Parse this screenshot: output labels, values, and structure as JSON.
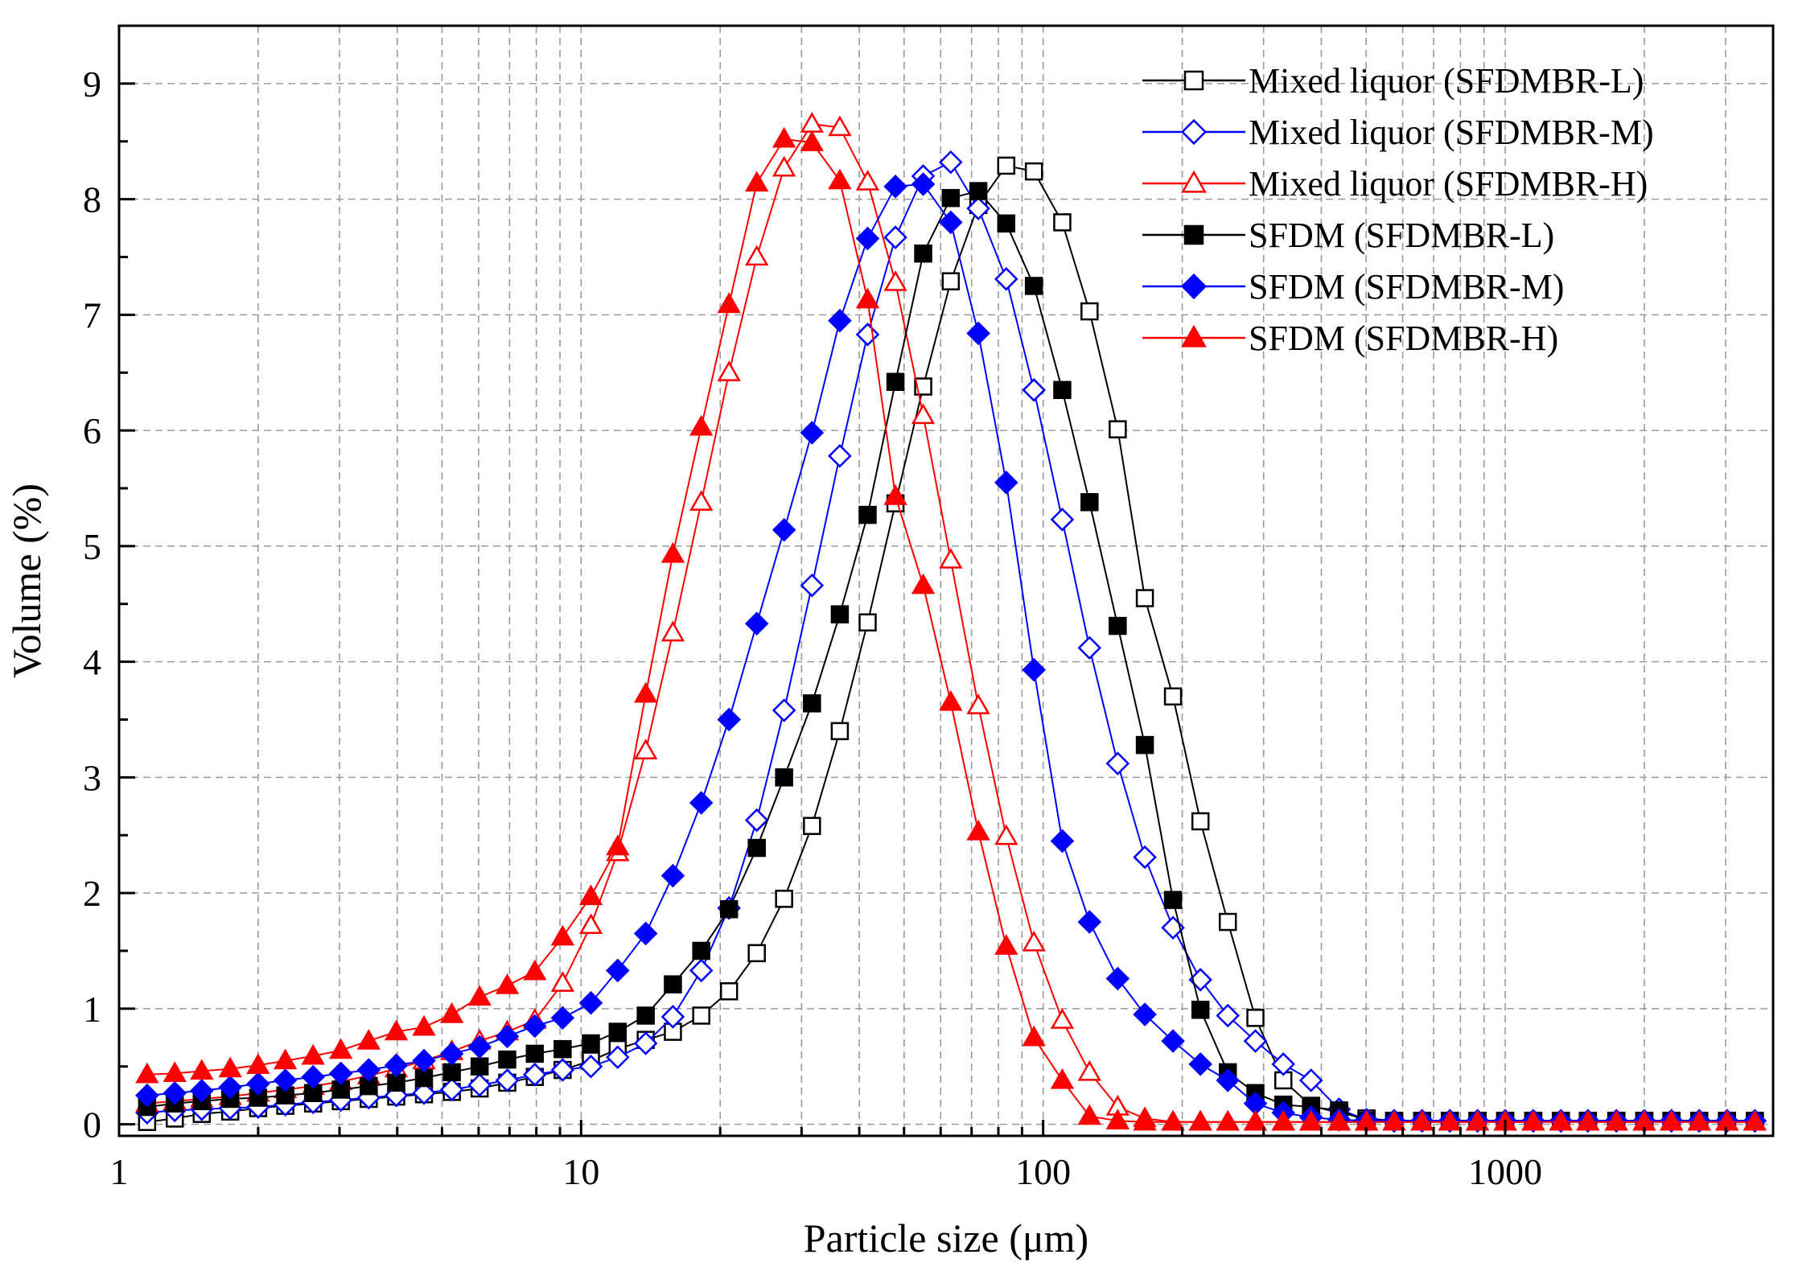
{
  "chart_data": {
    "type": "line",
    "xscale": "log",
    "xlim": [
      1,
      3800
    ],
    "ylim": [
      -0.1,
      9.5
    ],
    "xlabel": "Particle size (μm)",
    "ylabel": "Volume (%)",
    "grid": true,
    "legend_position": "top-right",
    "x_ticks": [
      1,
      10,
      100,
      1000
    ],
    "x_tick_labels": [
      "1",
      "10",
      "100",
      "1000"
    ],
    "y_ticks": [
      0,
      1,
      2,
      3,
      4,
      5,
      6,
      7,
      8,
      9
    ],
    "y_tick_labels": [
      "0",
      "1",
      "2",
      "3",
      "4",
      "5",
      "6",
      "7",
      "8",
      "9"
    ],
    "x": [
      1.15,
      1.32,
      1.51,
      1.74,
      2.0,
      2.29,
      2.63,
      3.02,
      3.47,
      3.98,
      4.57,
      5.25,
      6.03,
      6.92,
      7.94,
      9.12,
      10.5,
      12.0,
      13.8,
      15.8,
      18.2,
      20.9,
      24.0,
      27.5,
      31.6,
      36.3,
      41.7,
      47.9,
      55.0,
      63.1,
      72.4,
      83.2,
      95.5,
      110,
      126,
      145,
      166,
      191,
      219,
      251,
      288,
      331,
      380,
      437,
      501,
      575,
      661,
      759,
      871,
      1000,
      1150,
      1320,
      1510,
      1740,
      2000,
      2290,
      2630,
      3020,
      3470
    ],
    "series": [
      {
        "name": "Mixed liquor (SFDMBR-L)",
        "color": "#000000",
        "marker": "square",
        "filled": false,
        "values": [
          0.02,
          0.05,
          0.09,
          0.11,
          0.14,
          0.16,
          0.18,
          0.2,
          0.22,
          0.24,
          0.26,
          0.28,
          0.31,
          0.36,
          0.41,
          0.47,
          0.55,
          0.65,
          0.73,
          0.8,
          0.94,
          1.15,
          1.48,
          1.95,
          2.58,
          3.4,
          4.34,
          5.37,
          6.38,
          7.29,
          7.95,
          8.29,
          8.24,
          7.8,
          7.03,
          6.01,
          4.55,
          3.7,
          2.62,
          1.75,
          0.92,
          0.38,
          0.16,
          0.1,
          0.05,
          0.03,
          0.03,
          0.03,
          0.03,
          0.03,
          0.03,
          0.03,
          0.03,
          0.03,
          0.03,
          0.03,
          0.03,
          0.03,
          0.03
        ]
      },
      {
        "name": "Mixed liquor (SFDMBR-M)",
        "color": "#0000ff",
        "marker": "diamond",
        "filled": false,
        "values": [
          0.1,
          0.12,
          0.13,
          0.14,
          0.15,
          0.17,
          0.19,
          0.21,
          0.23,
          0.25,
          0.27,
          0.3,
          0.34,
          0.38,
          0.43,
          0.47,
          0.5,
          0.58,
          0.7,
          0.93,
          1.33,
          1.87,
          2.63,
          3.58,
          4.66,
          5.78,
          6.83,
          7.67,
          8.2,
          8.32,
          7.92,
          7.31,
          6.35,
          5.23,
          4.12,
          3.12,
          2.31,
          1.7,
          1.25,
          0.94,
          0.72,
          0.52,
          0.38,
          0.13,
          0.04,
          0.03,
          0.03,
          0.03,
          0.03,
          0.03,
          0.03,
          0.03,
          0.03,
          0.03,
          0.03,
          0.03,
          0.03,
          0.03,
          0.03
        ]
      },
      {
        "name": "Mixed liquor (SFDMBR-H)",
        "color": "#ff0000",
        "marker": "triangle",
        "filled": false,
        "values": [
          0.18,
          0.2,
          0.22,
          0.24,
          0.27,
          0.3,
          0.33,
          0.37,
          0.42,
          0.48,
          0.55,
          0.63,
          0.72,
          0.8,
          0.9,
          1.22,
          1.72,
          2.35,
          3.23,
          4.25,
          5.38,
          6.5,
          7.5,
          8.27,
          8.65,
          8.62,
          8.15,
          7.28,
          6.13,
          4.88,
          3.62,
          2.49,
          1.57,
          0.9,
          0.45,
          0.15,
          0.05,
          0.02,
          0.02,
          0.02,
          0.02,
          0.02,
          0.02,
          0.02,
          0.02,
          0.02,
          0.02,
          0.02,
          0.02,
          0.02,
          0.02,
          0.02,
          0.02,
          0.02,
          0.02,
          0.02,
          0.02,
          0.02,
          0.02
        ]
      },
      {
        "name": "SFDM (SFDMBR-L)",
        "color": "#000000",
        "marker": "square",
        "filled": true,
        "values": [
          0.15,
          0.18,
          0.2,
          0.22,
          0.23,
          0.25,
          0.27,
          0.3,
          0.33,
          0.36,
          0.4,
          0.45,
          0.5,
          0.56,
          0.61,
          0.65,
          0.7,
          0.8,
          0.94,
          1.21,
          1.5,
          1.86,
          2.39,
          3.0,
          3.64,
          4.41,
          5.27,
          6.42,
          7.53,
          8.01,
          8.07,
          7.79,
          7.25,
          6.35,
          5.38,
          4.31,
          3.28,
          1.94,
          0.99,
          0.45,
          0.27,
          0.17,
          0.15,
          0.12,
          0.03,
          0.03,
          0.03,
          0.03,
          0.03,
          0.03,
          0.03,
          0.03,
          0.03,
          0.03,
          0.03,
          0.03,
          0.03,
          0.03,
          0.03
        ]
      },
      {
        "name": "SFDM (SFDMBR-M)",
        "color": "#0000ff",
        "marker": "diamond",
        "filled": true,
        "values": [
          0.25,
          0.27,
          0.29,
          0.32,
          0.35,
          0.38,
          0.41,
          0.44,
          0.47,
          0.51,
          0.55,
          0.61,
          0.67,
          0.76,
          0.85,
          0.92,
          1.05,
          1.33,
          1.65,
          2.15,
          2.78,
          3.5,
          4.33,
          5.14,
          5.98,
          6.95,
          7.66,
          8.11,
          8.13,
          7.8,
          6.84,
          5.55,
          3.93,
          2.45,
          1.75,
          1.26,
          0.95,
          0.72,
          0.52,
          0.38,
          0.18,
          0.1,
          0.06,
          0.04,
          0.03,
          0.03,
          0.03,
          0.03,
          0.03,
          0.03,
          0.03,
          0.03,
          0.03,
          0.03,
          0.03,
          0.03,
          0.03,
          0.03,
          0.03
        ]
      },
      {
        "name": "SFDM (SFDMBR-H)",
        "color": "#ff0000",
        "marker": "triangle",
        "filled": true,
        "values": [
          0.43,
          0.44,
          0.46,
          0.48,
          0.51,
          0.55,
          0.59,
          0.64,
          0.72,
          0.8,
          0.84,
          0.95,
          1.1,
          1.2,
          1.32,
          1.62,
          1.97,
          2.4,
          3.72,
          4.93,
          6.03,
          7.09,
          8.14,
          8.52,
          8.49,
          8.16,
          7.13,
          5.43,
          4.66,
          3.65,
          2.53,
          1.54,
          0.75,
          0.38,
          0.07,
          0.03,
          0.02,
          0.02,
          0.02,
          0.02,
          0.02,
          0.02,
          0.02,
          0.02,
          0.02,
          0.02,
          0.02,
          0.02,
          0.02,
          0.02,
          0.02,
          0.02,
          0.02,
          0.02,
          0.02,
          0.02,
          0.02,
          0.02,
          0.02
        ]
      }
    ]
  }
}
